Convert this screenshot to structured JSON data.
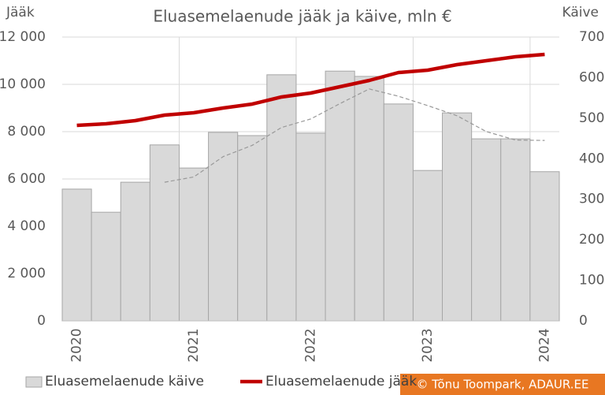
{
  "chart_data": {
    "type": "bar_line",
    "title": "Eluasemelaenude jääk ja käive, mln €",
    "y_label": "Jääk",
    "y2_label": "Käive",
    "source": "© Tõnu Toompark, ADAUR.EE",
    "categories": [
      "2020",
      null,
      null,
      null,
      "2021",
      null,
      null,
      null,
      "2022",
      null,
      null,
      null,
      "2023",
      null,
      null,
      null,
      "2024"
    ],
    "series": [
      {
        "name": "Eluasemelaenude käive",
        "type": "bar",
        "axis": "y2",
        "color": "#d9d9d9",
        "values": [
          325,
          268,
          342,
          434,
          377,
          465,
          457,
          607,
          463,
          616,
          603,
          535,
          371,
          513,
          449,
          449,
          368
        ]
      },
      {
        "name": "Eluasemelaenude jääk",
        "type": "line",
        "axis": "y",
        "color": "#c00000",
        "values": [
          8267,
          8333,
          8467,
          8700,
          8800,
          9000,
          9167,
          9467,
          9633,
          9900,
          10167,
          10500,
          10600,
          10833,
          11000,
          11167,
          11267
        ]
      },
      {
        "type": "line",
        "axis": "y2",
        "color": "#999999",
        "dashed": true,
        "values": [
          null,
          null,
          null,
          342,
          355,
          405,
          433,
          477,
          498,
          536,
          572,
          554,
          531,
          506,
          467,
          446,
          445
        ]
      }
    ],
    "ylim": [
      0,
      12000
    ],
    "yticks": [
      0,
      {
        "value": 2000,
        "label": "2 000"
      },
      {
        "value": 4000,
        "label": "4 000"
      },
      {
        "value": 6000,
        "label": "6 000"
      },
      {
        "value": 8000,
        "label": "8 000"
      },
      {
        "value": 10000,
        "label": "10 000"
      },
      {
        "value": 12000,
        "label": "12 000"
      }
    ],
    "y2lim": [
      0,
      700
    ],
    "y2ticks": [
      0,
      100,
      200,
      300,
      400,
      500,
      600,
      700
    ],
    "grid": true,
    "legend": "bottom"
  }
}
